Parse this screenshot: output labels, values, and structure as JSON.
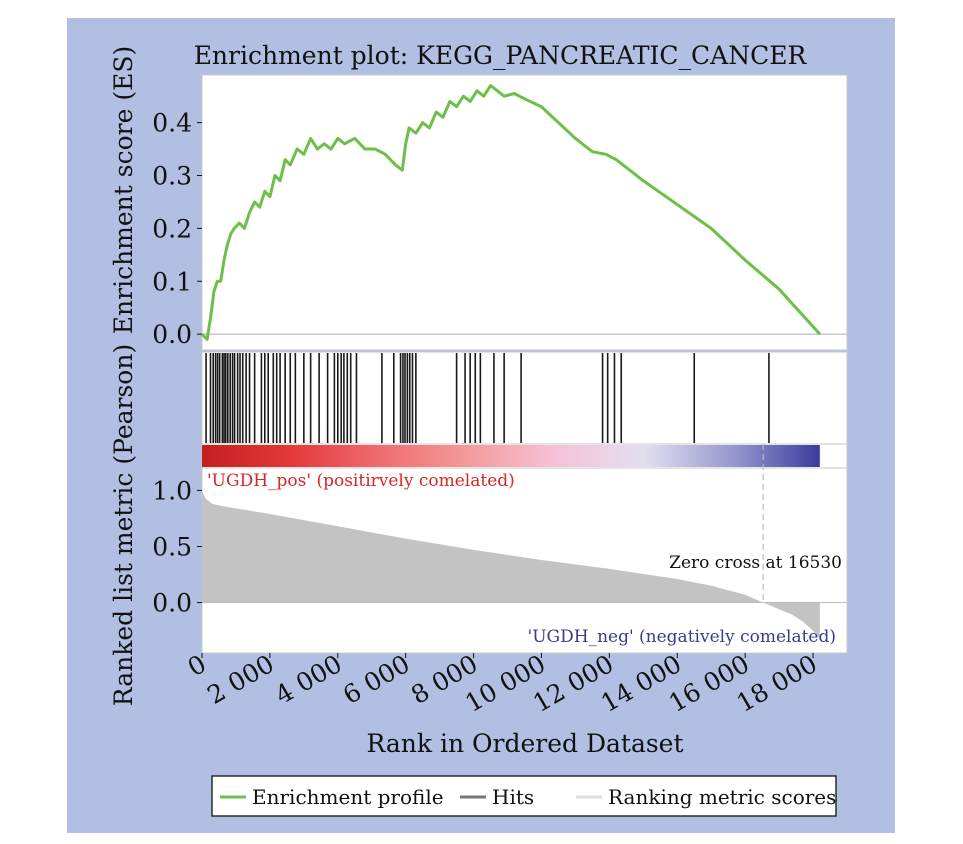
{
  "colors": {
    "background": "#b1bfe2",
    "plot_bg": "#ffffff",
    "es_line": "#6cc04a",
    "hit_line": "#1a1a1a",
    "ranked_fill": "#c3c3c3",
    "pos_label": "#d62728",
    "neg_label": "#3b3b8e",
    "zero_line": "#bdbdbd"
  },
  "chart_data": {
    "type": "line",
    "title": "Enrichment plot: KEGG_PANCREATIC_CANCER",
    "xlabel": "Rank in Ordered Dataset",
    "es_ylabel": "Enrichment score (ES)",
    "rank_ylabel": "Ranked list metric (Pearson)",
    "xlim": [
      0,
      19000
    ],
    "es_ylim": [
      -0.03,
      0.49
    ],
    "rank_ylim": [
      -0.45,
      1.2
    ],
    "x_ticks": [
      0,
      2000,
      4000,
      6000,
      8000,
      10000,
      12000,
      14000,
      16000,
      18000
    ],
    "x_tick_labels": [
      "0",
      "2 000",
      "4 000",
      "6 000",
      "8 000",
      "10 000",
      "12 000",
      "14 000",
      "16 000",
      "18 000"
    ],
    "es_y_ticks": [
      0.0,
      0.1,
      0.2,
      0.3,
      0.4
    ],
    "es_y_tick_labels": [
      "0.0",
      "0.1",
      "0.2",
      "0.3",
      "0.4"
    ],
    "rank_y_ticks": [
      0.0,
      0.5,
      1.0
    ],
    "rank_y_tick_labels": [
      "0.0",
      "0.5",
      "1.0"
    ],
    "series": [
      {
        "name": "Enrichment profile",
        "x": [
          0,
          150,
          250,
          350,
          450,
          550,
          650,
          750,
          850,
          950,
          1100,
          1250,
          1400,
          1550,
          1700,
          1850,
          2000,
          2150,
          2300,
          2450,
          2600,
          2800,
          3000,
          3200,
          3400,
          3600,
          3800,
          4000,
          4200,
          4500,
          4800,
          5100,
          5400,
          5700,
          5900,
          6000,
          6100,
          6300,
          6500,
          6700,
          6900,
          7100,
          7300,
          7500,
          7700,
          7900,
          8100,
          8300,
          8500,
          8700,
          8900,
          9200,
          9500,
          10000,
          10500,
          11000,
          11500,
          11900,
          12200,
          12600,
          13000,
          14000,
          15000,
          16000,
          17000,
          18200
        ],
        "y": [
          0.0,
          -0.01,
          0.03,
          0.08,
          0.1,
          0.1,
          0.14,
          0.17,
          0.19,
          0.2,
          0.21,
          0.2,
          0.23,
          0.25,
          0.24,
          0.27,
          0.26,
          0.3,
          0.29,
          0.33,
          0.32,
          0.35,
          0.34,
          0.37,
          0.35,
          0.36,
          0.35,
          0.37,
          0.36,
          0.37,
          0.35,
          0.35,
          0.34,
          0.32,
          0.31,
          0.36,
          0.39,
          0.38,
          0.4,
          0.39,
          0.42,
          0.41,
          0.44,
          0.43,
          0.45,
          0.44,
          0.46,
          0.45,
          0.47,
          0.46,
          0.45,
          0.455,
          0.445,
          0.43,
          0.4,
          0.37,
          0.345,
          0.34,
          0.33,
          0.31,
          0.29,
          0.245,
          0.2,
          0.14,
          0.085,
          0.0
        ]
      },
      {
        "name": "Hits",
        "x": [
          120,
          250,
          330,
          400,
          460,
          520,
          600,
          650,
          700,
          760,
          830,
          900,
          960,
          1050,
          1120,
          1200,
          1300,
          1400,
          1550,
          1750,
          1850,
          1950,
          2100,
          2200,
          2300,
          2450,
          2600,
          2750,
          3000,
          3200,
          3450,
          3700,
          3900,
          4000,
          4100,
          4180,
          4280,
          4380,
          4550,
          5300,
          5650,
          5850,
          5920,
          5980,
          6050,
          6120,
          6200,
          6300,
          7500,
          7750,
          7900,
          8050,
          8200,
          8600,
          8900,
          9400,
          11800,
          11950,
          12150,
          12350,
          14500,
          16700
        ]
      },
      {
        "name": "Ranking metric scores",
        "x": [
          0,
          100,
          300,
          600,
          1000,
          2000,
          4000,
          6000,
          8000,
          10000,
          12000,
          14000,
          15000,
          16000,
          16530,
          17000,
          17400,
          17700,
          18000,
          18200
        ],
        "y": [
          1.0,
          0.93,
          0.88,
          0.86,
          0.84,
          0.79,
          0.68,
          0.57,
          0.47,
          0.38,
          0.3,
          0.21,
          0.15,
          0.07,
          0.0,
          -0.06,
          -0.11,
          -0.17,
          -0.25,
          -0.32
        ]
      }
    ],
    "legend": {
      "position": "bottom",
      "entries": [
        "Enrichment profile",
        "Hits",
        "Ranking metric scores"
      ]
    },
    "gradient_bar": {
      "stops": [
        "#c41f1f",
        "#e43838",
        "#ef6b70",
        "#f39a9a",
        "#f6c1d6",
        "#e3dff0",
        "#9999cf",
        "#3b3b9e"
      ]
    },
    "annotations": {
      "pos_label": "'UGDH_pos' (positirvely comelated)",
      "neg_label": "'UGDH_neg' (negatively comelated)",
      "zero_cross": "Zero cross at 16530",
      "zero_cross_x": 16530
    },
    "grid": false
  }
}
